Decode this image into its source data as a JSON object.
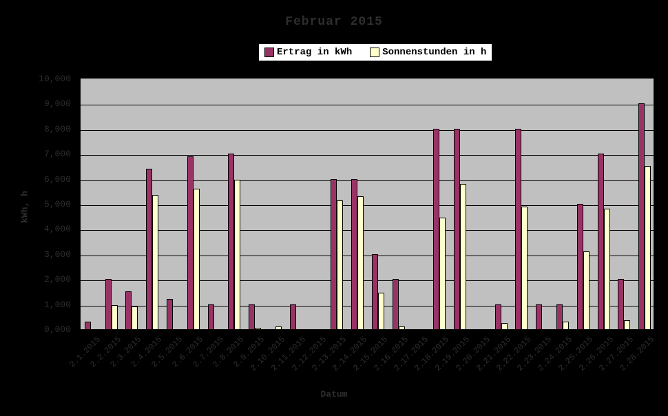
{
  "title": "Februar 2015",
  "legend": {
    "items": [
      {
        "label": "Ertrag in kWh",
        "color": "#993366"
      },
      {
        "label": "Sonnenstunden in h",
        "color": "#FFFFCC"
      }
    ]
  },
  "y_axis": {
    "title": "kWh, h",
    "tick_labels": [
      "0,000",
      "1,000",
      "2,000",
      "3,000",
      "4,000",
      "5,000",
      "6,000",
      "7,000",
      "8,000",
      "9,000",
      "10,000"
    ],
    "min": 0,
    "max": 10
  },
  "x_axis": {
    "title": "Datum"
  },
  "colors": {
    "background": "#000000",
    "plot_background": "#C0C0C0",
    "gridline": "#000000",
    "series_ertrag": "#993366",
    "series_sonnenstunden": "#FFFFCC",
    "legend_background": "#FFFFFF",
    "text": "#2e2e2e"
  },
  "chart_data": {
    "type": "bar",
    "title": "Februar 2015",
    "xlabel": "Datum",
    "ylabel": "kWh, h",
    "ylim": [
      0,
      10
    ],
    "grid": true,
    "legend_position": "top",
    "categories": [
      "2.1.2015",
      "2.2.2015",
      "2.3.2015",
      "2.4.2015",
      "2.5.2015",
      "2.6.2015",
      "2.7.2015",
      "2.8.2015",
      "2.9.2015",
      "2.10.2015",
      "2.11.2015",
      "2.12.2015",
      "2.13.2015",
      "2.14.2015",
      "2.15.2015",
      "2.16.2015",
      "2.17.2015",
      "2.18.2015",
      "2.19.2015",
      "2.20.2015",
      "2.21.2015",
      "2.22.2015",
      "2.23.2015",
      "2.24.2015",
      "2.25.2015",
      "2.26.2015",
      "2.27.2015",
      "2.28.2015"
    ],
    "series": [
      {
        "name": "Ertrag in kWh",
        "color": "#993366",
        "values": [
          0.3,
          2.0,
          1.5,
          6.4,
          1.2,
          6.9,
          1.0,
          7.0,
          1.0,
          0,
          1.0,
          0,
          6.0,
          6.0,
          3.0,
          2.0,
          0,
          8.0,
          8.0,
          0,
          1.0,
          8.0,
          1.0,
          1.0,
          5.0,
          7.0,
          2.0,
          9.0
        ]
      },
      {
        "name": "Sonnenstunden in h",
        "color": "#FFFFCC",
        "values": [
          0,
          0.95,
          0.9,
          5.35,
          0,
          5.6,
          0,
          5.95,
          0.05,
          0.1,
          0,
          0,
          5.15,
          5.3,
          1.45,
          0.1,
          0,
          4.45,
          5.8,
          0,
          0.25,
          4.9,
          0,
          0.3,
          3.1,
          4.8,
          0.35,
          6.5
        ]
      }
    ]
  }
}
